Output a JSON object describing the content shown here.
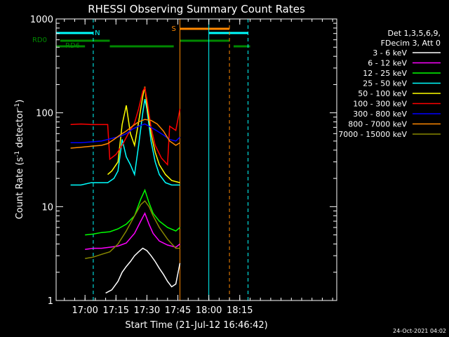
{
  "chart_data": {
    "type": "line",
    "title": "RHESSI Observing Summary Count Rates",
    "xlabel": "Start Time (21-Jul-12 16:46:42)",
    "ylabel_main": "Count Rate (s",
    "ylabel_sup1": "-1",
    "ylabel_mid": " detector",
    "ylabel_sup2": "-1",
    "ylabel_end": ")",
    "ylog": true,
    "ylim": [
      1,
      1000
    ],
    "xlim_min": [
      -14,
      122
    ],
    "x_ticks": [
      {
        "t": 0,
        "label": "17:00"
      },
      {
        "t": 15,
        "label": "17:15"
      },
      {
        "t": 30,
        "label": "17:30"
      },
      {
        "t": 45,
        "label": "17:45"
      },
      {
        "t": 60,
        "label": "18:00"
      },
      {
        "t": 75,
        "label": "18:15"
      }
    ],
    "y_ticks": [
      {
        "v": 1,
        "label": "1"
      },
      {
        "v": 10,
        "label": "10"
      },
      {
        "v": 100,
        "label": "100"
      },
      {
        "v": 1000,
        "label": "1000"
      }
    ],
    "legend": {
      "position": "right",
      "header1": "Det 1,3,5,6,9,",
      "header2": "FDecim 3, Att 0"
    },
    "series": [
      {
        "name": "3 - 6 keV",
        "color": "#ffffff",
        "x": [
          10,
          13,
          16,
          18,
          20,
          22,
          24,
          26,
          28,
          30,
          32,
          34,
          36,
          38,
          40,
          42,
          44,
          46
        ],
        "y": [
          1.2,
          1.3,
          1.6,
          2.0,
          2.3,
          2.6,
          3.0,
          3.3,
          3.6,
          3.4,
          3.0,
          2.6,
          2.2,
          1.9,
          1.6,
          1.4,
          1.5,
          2.5
        ]
      },
      {
        "name": "6 - 12 keV",
        "color": "#ff00ff",
        "x": [
          0,
          4,
          8,
          12,
          16,
          20,
          24,
          27,
          29,
          31,
          33,
          36,
          40,
          44,
          46
        ],
        "y": [
          3.5,
          3.6,
          3.6,
          3.7,
          3.8,
          4.1,
          5.2,
          7.0,
          8.5,
          6.5,
          5.2,
          4.3,
          3.9,
          3.7,
          4.0
        ]
      },
      {
        "name": "12 - 25 keV",
        "color": "#00ff00",
        "x": [
          0,
          4,
          8,
          12,
          16,
          20,
          24,
          27,
          29,
          31,
          33,
          36,
          40,
          44,
          46
        ],
        "y": [
          5.0,
          5.1,
          5.3,
          5.4,
          5.8,
          6.5,
          8.0,
          12.0,
          15.0,
          11.0,
          8.5,
          7.0,
          6.0,
          5.5,
          6.0
        ]
      },
      {
        "name": "25 - 50 keV",
        "color": "#00ffff",
        "x": [
          -7,
          -2,
          3,
          8,
          11,
          14,
          16,
          18,
          20,
          22,
          24,
          26,
          28,
          29,
          30,
          32,
          34,
          36,
          39,
          42,
          46
        ],
        "y": [
          17,
          17,
          18,
          18,
          18,
          20,
          24,
          52,
          34,
          28,
          22,
          45,
          100,
          140,
          110,
          50,
          30,
          22,
          18,
          17,
          17
        ]
      },
      {
        "name": "50 - 100 keV",
        "color": "#ffff00",
        "x": [
          11,
          13,
          16,
          18,
          20,
          22,
          24,
          26,
          28,
          29,
          30,
          32,
          34,
          36,
          39,
          42,
          46
        ],
        "y": [
          22,
          24,
          30,
          75,
          120,
          60,
          45,
          80,
          150,
          190,
          120,
          60,
          38,
          28,
          22,
          19,
          18
        ]
      },
      {
        "name": "100 - 300 keV",
        "color": "#ff0000",
        "x": [
          -7,
          -2,
          3,
          8,
          11,
          12,
          15,
          18,
          21,
          24,
          26,
          28,
          29,
          30,
          32,
          34,
          37,
          40,
          41,
          44,
          46
        ],
        "y": [
          75,
          76,
          75,
          75,
          75,
          32,
          36,
          45,
          60,
          78,
          110,
          170,
          185,
          140,
          70,
          45,
          33,
          28,
          72,
          65,
          110
        ]
      },
      {
        "name": "300 - 800 keV",
        "color": "#0000ff",
        "x": [
          -7,
          -2,
          3,
          8,
          11,
          14,
          17,
          20,
          23,
          26,
          29,
          32,
          35,
          38,
          41,
          44,
          46
        ],
        "y": [
          48,
          48,
          49,
          50,
          52,
          54,
          56,
          60,
          67,
          72,
          76,
          70,
          64,
          58,
          52,
          50,
          55
        ]
      },
      {
        "name": "800 - 7000 keV",
        "color": "#ff8800",
        "x": [
          -7,
          -2,
          3,
          8,
          11,
          14,
          17,
          20,
          23,
          26,
          29,
          32,
          35,
          38,
          41,
          44,
          46
        ],
        "y": [
          42,
          43,
          44,
          45,
          47,
          52,
          58,
          64,
          72,
          80,
          85,
          83,
          76,
          64,
          50,
          45,
          48
        ]
      },
      {
        "name": "7000 - 15000 keV",
        "color": "#888800",
        "x": [
          0,
          4,
          8,
          12,
          16,
          20,
          24,
          27,
          29,
          31,
          33,
          36,
          40,
          44,
          46
        ],
        "y": [
          2.8,
          2.9,
          3.1,
          3.3,
          4.0,
          5.5,
          8.0,
          10.5,
          11.5,
          10.0,
          8.0,
          6.0,
          4.5,
          3.6,
          3.6
        ]
      }
    ],
    "flags": [
      {
        "name": "night",
        "label": "N",
        "color": "#00ffff",
        "segments": [
          [
            -14,
            4
          ],
          [
            60,
            79
          ]
        ],
        "label_t": 6,
        "y": 1000
      },
      {
        "name": "saa",
        "label": "S",
        "color": "#ff8800",
        "segments": [
          [
            46,
            70
          ]
        ],
        "label_t": 43,
        "y": 1000
      },
      {
        "name": "rd0",
        "label": "RD0",
        "color": "#008800",
        "segments": [
          [
            -12,
            12
          ],
          [
            46,
            70
          ]
        ],
        "label_t": -22,
        "y": 1000
      },
      {
        "name": "rd6",
        "label": "RD6",
        "color": "#008800",
        "segments": [
          [
            -14,
            0
          ],
          [
            12,
            43
          ],
          [
            72,
            80
          ]
        ],
        "label_t": -6,
        "y": 1000
      }
    ],
    "vlines": [
      {
        "t": -14,
        "color": "#00ffff",
        "dashed": false
      },
      {
        "t": 4,
        "color": "#00ffff",
        "dashed": true
      },
      {
        "t": 46,
        "color": "#ff8800",
        "dashed": false
      },
      {
        "t": 60,
        "color": "#00ffff",
        "dashed": false
      },
      {
        "t": 70,
        "color": "#ff8800",
        "dashed": true
      },
      {
        "t": 79,
        "color": "#00ffff",
        "dashed": true
      }
    ]
  },
  "footer": {
    "date_stamp": "24-Oct-2021 04:02"
  }
}
